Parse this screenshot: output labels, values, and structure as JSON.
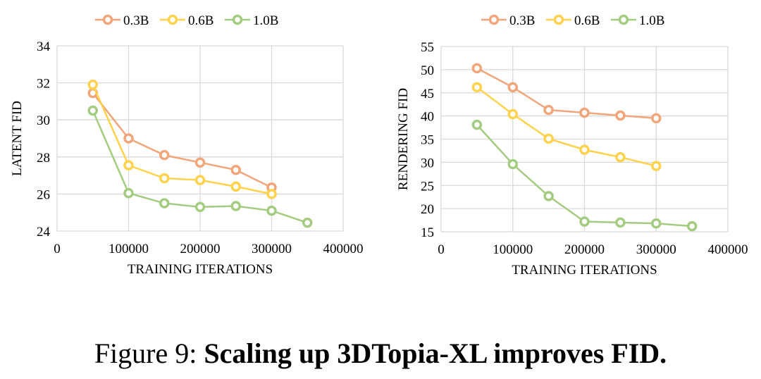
{
  "caption": {
    "prefix": "Figure 9:",
    "text": "Scaling up 3DTopia-XL improves FID."
  },
  "chart_data": [
    {
      "type": "line",
      "xlabel": "TRAINING ITERATIONS",
      "ylabel": "LATENT FID",
      "xlim": [
        0,
        400000
      ],
      "ylim": [
        24,
        34
      ],
      "xticks": [
        "0",
        "100000",
        "200000",
        "300000",
        "400000"
      ],
      "yticks": [
        "24",
        "26",
        "28",
        "30",
        "32",
        "34"
      ],
      "grid": true,
      "legend": "top",
      "series": [
        {
          "name": "0.3B",
          "color": "#F1A57A",
          "x": [
            50000,
            100000,
            150000,
            200000,
            250000,
            300000
          ],
          "y": [
            31.45,
            29.0,
            28.1,
            27.7,
            27.3,
            26.35
          ]
        },
        {
          "name": "0.6B",
          "color": "#FFD24D",
          "x": [
            50000,
            100000,
            150000,
            200000,
            250000,
            300000
          ],
          "y": [
            31.9,
            27.55,
            26.85,
            26.75,
            26.4,
            26.0
          ]
        },
        {
          "name": "1.0B",
          "color": "#A4CC80",
          "x": [
            50000,
            100000,
            150000,
            200000,
            250000,
            300000,
            350000
          ],
          "y": [
            30.5,
            26.05,
            25.5,
            25.3,
            25.35,
            25.1,
            24.45
          ]
        }
      ]
    },
    {
      "type": "line",
      "xlabel": "TRAINING ITERATIONS",
      "ylabel": "RENDERING FID",
      "xlim": [
        0,
        400000
      ],
      "ylim": [
        15,
        55
      ],
      "xticks": [
        "0",
        "100000",
        "200000",
        "300000",
        "400000"
      ],
      "yticks": [
        "15",
        "20",
        "25",
        "30",
        "35",
        "40",
        "45",
        "50",
        "55"
      ],
      "grid": true,
      "legend": "top",
      "series": [
        {
          "name": "0.3B",
          "color": "#F1A57A",
          "x": [
            50000,
            100000,
            150000,
            200000,
            250000,
            300000
          ],
          "y": [
            50.3,
            46.2,
            41.3,
            40.7,
            40.1,
            39.5
          ]
        },
        {
          "name": "0.6B",
          "color": "#FFD24D",
          "x": [
            50000,
            100000,
            150000,
            200000,
            250000,
            300000
          ],
          "y": [
            46.2,
            40.4,
            35.1,
            32.7,
            31.1,
            29.2
          ]
        },
        {
          "name": "1.0B",
          "color": "#A4CC80",
          "x": [
            50000,
            100000,
            150000,
            200000,
            250000,
            300000,
            350000
          ],
          "y": [
            38.1,
            29.6,
            22.7,
            17.2,
            17.0,
            16.8,
            16.2
          ]
        }
      ]
    }
  ]
}
